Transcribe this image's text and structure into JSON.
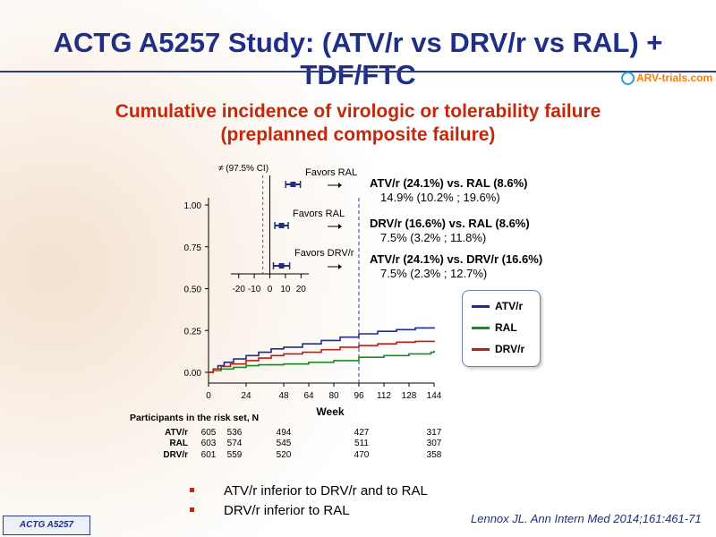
{
  "slide": {
    "title": "ACTG A5257 Study: (ATV/r vs DRV/r vs RAL) + TDF/FTC",
    "logo_text": "ARV-trials.com",
    "subtitle_line1": "Cumulative incidence of virologic or tolerability failure",
    "subtitle_line2": "(preplanned composite failure)",
    "bullets": [
      "ATV/r  inferior to DRV/r and to RAL",
      "DRV/r inferior to RAL"
    ],
    "citation": "Lennox JL. Ann Intern Med 2014;161:461-71",
    "study_tag": "ACTG A5257",
    "colors": {
      "title": "#1f2f87",
      "subtitle": "#c0290c",
      "bullet": "#c0290c"
    }
  },
  "chart_data": [
    {
      "type": "line",
      "xlabel": "Week",
      "ylabel": "",
      "x_ticks": [
        0,
        24,
        48,
        64,
        80,
        96,
        112,
        128,
        144
      ],
      "y_ticks": [
        "0.00",
        "0.25",
        "0.50",
        "0.75",
        "1.00"
      ],
      "xlim": [
        0,
        144
      ],
      "ylim": [
        0,
        1
      ],
      "reference_line_week": 96,
      "legend_position": "right",
      "series": [
        {
          "name": "ATV/r",
          "color": "#1f2f87",
          "x": [
            0,
            3,
            6,
            10,
            16,
            24,
            32,
            40,
            48,
            60,
            72,
            84,
            96,
            108,
            120,
            132,
            144
          ],
          "y": [
            0,
            0.02,
            0.04,
            0.06,
            0.08,
            0.1,
            0.12,
            0.14,
            0.15,
            0.17,
            0.19,
            0.21,
            0.23,
            0.245,
            0.255,
            0.265,
            0.27
          ]
        },
        {
          "name": "RAL",
          "color": "#1a8a22",
          "x": [
            0,
            3,
            8,
            16,
            24,
            32,
            48,
            64,
            80,
            96,
            112,
            128,
            142,
            144
          ],
          "y": [
            0,
            0.01,
            0.02,
            0.03,
            0.04,
            0.045,
            0.05,
            0.06,
            0.07,
            0.09,
            0.1,
            0.11,
            0.12,
            0.13
          ]
        },
        {
          "name": "DRV/r",
          "color": "#c41a12",
          "x": [
            0,
            3,
            8,
            14,
            24,
            32,
            40,
            48,
            60,
            72,
            84,
            96,
            108,
            120,
            132,
            144
          ],
          "y": [
            0,
            0.02,
            0.035,
            0.05,
            0.07,
            0.085,
            0.1,
            0.11,
            0.12,
            0.135,
            0.15,
            0.16,
            0.17,
            0.18,
            0.185,
            0.19
          ]
        }
      ]
    },
    {
      "type": "forest",
      "annotation": "≠ (97.5% CI)",
      "x_ticks": [
        "-20",
        "-10",
        "0",
        "10",
        "20"
      ],
      "xlim": [
        -25,
        25
      ],
      "comparisons": [
        {
          "favors": "Favors RAL",
          "label": "ATV/r (24.1%) vs. RAL (8.6%)",
          "value_text": "14.9% (10.2% ; 19.6%)",
          "estimate": 14.9,
          "ci": [
            10.2,
            19.6
          ]
        },
        {
          "favors": "Favors RAL",
          "label": "DRV/r (16.6%) vs. RAL (8.6%)",
          "value_text": "7.5% (3.2% ; 11.8%)",
          "estimate": 7.5,
          "ci": [
            3.2,
            11.8
          ]
        },
        {
          "favors": "Favors DRV/r",
          "label": "ATV/r (24.1%) vs. DRV/r (16.6%)",
          "value_text": "7.5% (2.3% ; 12.7%)",
          "estimate": 7.5,
          "ci": [
            2.3,
            12.7
          ]
        }
      ]
    }
  ],
  "risk_table": {
    "title": "Participants in the risk set, N",
    "weeks": [
      0,
      24,
      48,
      96,
      144
    ],
    "rows": [
      {
        "name": "ATV/r",
        "values": [
          "605",
          "536",
          "494",
          "427",
          "317"
        ]
      },
      {
        "name": "RAL",
        "values": [
          "603",
          "574",
          "545",
          "511",
          "307"
        ]
      },
      {
        "name": "DRV/r",
        "values": [
          "601",
          "559",
          "520",
          "470",
          "358"
        ]
      }
    ]
  }
}
